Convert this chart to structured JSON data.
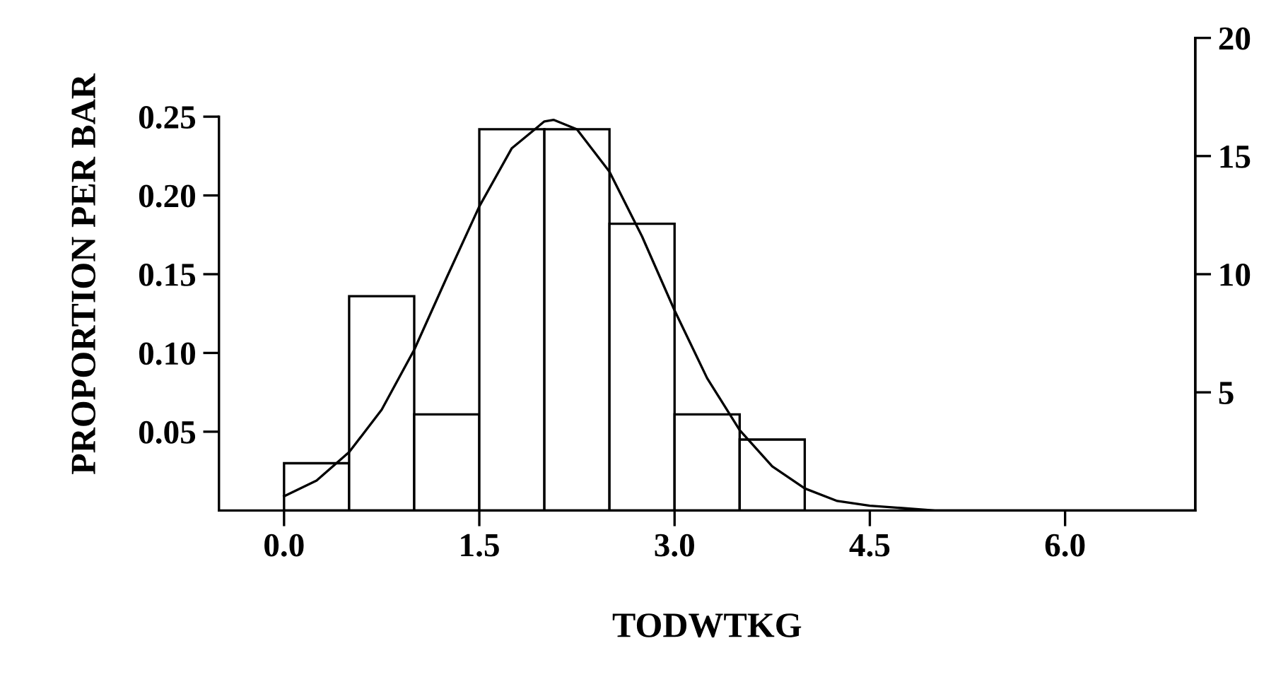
{
  "chart_data": {
    "type": "histogram",
    "xlabel": "TODWTKG",
    "ylabel": "PROPORTION PER BAR",
    "bins": [
      0.0,
      0.5,
      1.0,
      1.5,
      2.0,
      2.5,
      3.0,
      3.5,
      4.0
    ],
    "values": [
      0.03,
      0.136,
      0.061,
      0.242,
      0.242,
      0.182,
      0.061,
      0.045
    ],
    "color": "#ffffff",
    "series": [
      {
        "type": "line",
        "color": "#000000",
        "x": [
          0,
          0.25,
          0.5,
          0.75,
          1.0,
          1.25,
          1.5,
          1.75,
          2.0,
          2.07,
          2.25,
          2.5,
          2.75,
          3.0,
          3.25,
          3.5,
          3.75,
          4.0,
          4.25,
          4.5,
          5.0,
          5.5,
          6.0,
          7.0
        ],
        "values": [
          0.009,
          0.019,
          0.037,
          0.064,
          0.102,
          0.148,
          0.193,
          0.23,
          0.247,
          0.248,
          0.242,
          0.215,
          0.174,
          0.127,
          0.084,
          0.051,
          0.028,
          0.014,
          0.006,
          0.003,
          0.0,
          0.0,
          0.0,
          0.0
        ]
      }
    ],
    "xlim": [
      -0.5,
      7.0
    ],
    "xticks": [
      {
        "value": 0.0,
        "label": "0.0"
      },
      {
        "value": 1.5,
        "label": "1.5"
      },
      {
        "value": 3.0,
        "label": "3.0"
      },
      {
        "value": 4.5,
        "label": "4.5"
      },
      {
        "value": 6.0,
        "label": "6.0"
      }
    ],
    "ylim": [
      0,
      0.3
    ],
    "yticks": [
      0.05,
      {
        "value": 0.1,
        "label": "0.10"
      },
      0.15,
      {
        "value": 0.2,
        "label": "0.20"
      },
      0.25
    ],
    "y2lim": [
      0,
      20
    ],
    "y2ticks": [
      5,
      10,
      15,
      20
    ],
    "grid": false,
    "legend": false
  }
}
